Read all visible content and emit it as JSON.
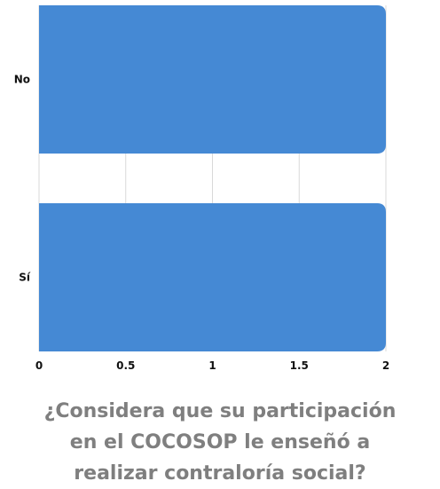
{
  "chart_data": {
    "type": "bar",
    "orientation": "horizontal",
    "categories": [
      "No",
      "Sí"
    ],
    "values": [
      2,
      2
    ],
    "title": "¿Considera que su participación\nen el COCOSOP le enseñó a\nrealizar contraloría social?",
    "xlabel": "",
    "ylabel": "",
    "xlim": [
      0,
      2
    ],
    "x_ticks": [
      "0",
      "0.5",
      "1",
      "1.5",
      "2"
    ],
    "x_tick_values": [
      0,
      0.5,
      1,
      1.5,
      2
    ],
    "grid": true,
    "legend": "none",
    "bar_color": "#4589d4",
    "grid_color": "#d9d9d9",
    "title_color": "#7f7f7f"
  }
}
